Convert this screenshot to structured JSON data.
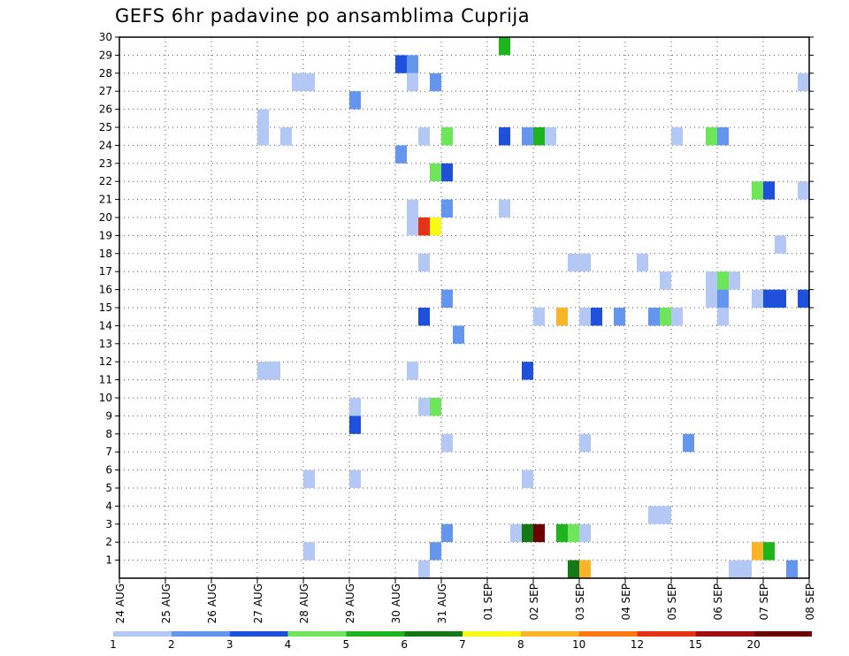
{
  "chart_data": {
    "type": "heatmap",
    "title": "GEFS 6hr padavine po ansamblima Cuprija",
    "x_ticks": [
      "24 AUG",
      "25 AUG",
      "26 AUG",
      "27 AUG",
      "28 AUG",
      "29 AUG",
      "30 AUG",
      "31 AUG",
      "01 SEP",
      "02 SEP",
      "03 SEP",
      "04 SEP",
      "05 SEP",
      "06 SEP",
      "07 SEP",
      "08 SEP"
    ],
    "y_ticks": [
      1,
      2,
      3,
      4,
      5,
      6,
      7,
      8,
      9,
      10,
      11,
      12,
      13,
      14,
      15,
      16,
      17,
      18,
      19,
      20,
      21,
      22,
      23,
      24,
      25,
      26,
      27,
      28,
      29,
      30
    ],
    "y_range": [
      0,
      30
    ],
    "x_range": [
      "24 AUG 00Z",
      "08 SEP 00Z"
    ],
    "x_step_hours": 6,
    "grid": true,
    "colorbar": {
      "labels": [
        "1",
        "2",
        "3",
        "4",
        "5",
        "6",
        "7",
        "8",
        "10",
        "12",
        "15",
        "20"
      ],
      "colors": [
        "#b4c8f5",
        "#6496f0",
        "#1e50dc",
        "#6ee65a",
        "#1eb41e",
        "#147814",
        "#fafa14",
        "#fab428",
        "#fa7814",
        "#e63214",
        "#a00f0f",
        "#6e0000"
      ]
    },
    "values": [
      {
        "t": 33,
        "m": 29,
        "v": 5.5
      },
      {
        "t": 24,
        "m": 28,
        "v": 3.5
      },
      {
        "t": 25,
        "m": 28,
        "v": 2.5
      },
      {
        "t": 15,
        "m": 27,
        "v": 1.5
      },
      {
        "t": 16,
        "m": 27,
        "v": 1.5
      },
      {
        "t": 25,
        "m": 27,
        "v": 1.5
      },
      {
        "t": 27,
        "m": 27,
        "v": 2.5
      },
      {
        "t": 59,
        "m": 27,
        "v": 1.5
      },
      {
        "t": 20,
        "m": 26,
        "v": 2.5
      },
      {
        "t": 12,
        "m": 25,
        "v": 1.5
      },
      {
        "t": 12,
        "m": 24,
        "v": 1.5
      },
      {
        "t": 14,
        "m": 24,
        "v": 1.5
      },
      {
        "t": 26,
        "m": 24,
        "v": 1.5
      },
      {
        "t": 28,
        "m": 24,
        "v": 4.5
      },
      {
        "t": 33,
        "m": 24,
        "v": 3.5
      },
      {
        "t": 35,
        "m": 24,
        "v": 2.5
      },
      {
        "t": 36,
        "m": 24,
        "v": 5.5
      },
      {
        "t": 37,
        "m": 24,
        "v": 1.5
      },
      {
        "t": 48,
        "m": 24,
        "v": 1.5
      },
      {
        "t": 51,
        "m": 24,
        "v": 4.5
      },
      {
        "t": 52,
        "m": 24,
        "v": 2.5
      },
      {
        "t": 24,
        "m": 23,
        "v": 2.5
      },
      {
        "t": 27,
        "m": 22,
        "v": 4.5
      },
      {
        "t": 28,
        "m": 22,
        "v": 3.5
      },
      {
        "t": 55,
        "m": 21,
        "v": 4.5
      },
      {
        "t": 56,
        "m": 21,
        "v": 3.5
      },
      {
        "t": 59,
        "m": 21,
        "v": 1.5
      },
      {
        "t": 25,
        "m": 20,
        "v": 1.5
      },
      {
        "t": 28,
        "m": 20,
        "v": 2.5
      },
      {
        "t": 33,
        "m": 20,
        "v": 1.5
      },
      {
        "t": 25,
        "m": 19,
        "v": 1.5
      },
      {
        "t": 26,
        "m": 19,
        "v": 13.5
      },
      {
        "t": 27,
        "m": 19,
        "v": 7.5
      },
      {
        "t": 57,
        "m": 18,
        "v": 1.5
      },
      {
        "t": 26,
        "m": 17,
        "v": 1.5
      },
      {
        "t": 39,
        "m": 17,
        "v": 1.5
      },
      {
        "t": 40,
        "m": 17,
        "v": 1.5
      },
      {
        "t": 45,
        "m": 17,
        "v": 1.5
      },
      {
        "t": 47,
        "m": 16,
        "v": 1.5
      },
      {
        "t": 51,
        "m": 16,
        "v": 1.5
      },
      {
        "t": 52,
        "m": 16,
        "v": 4.5
      },
      {
        "t": 53,
        "m": 16,
        "v": 1.5
      },
      {
        "t": 28,
        "m": 15,
        "v": 2.5
      },
      {
        "t": 51,
        "m": 15,
        "v": 1.5
      },
      {
        "t": 52,
        "m": 15,
        "v": 2.5
      },
      {
        "t": 55,
        "m": 15,
        "v": 1.5
      },
      {
        "t": 56,
        "m": 15,
        "v": 3.5
      },
      {
        "t": 57,
        "m": 15,
        "v": 3.5
      },
      {
        "t": 59,
        "m": 15,
        "v": 3.5
      },
      {
        "t": 26,
        "m": 14,
        "v": 3.5
      },
      {
        "t": 36,
        "m": 14,
        "v": 1.5
      },
      {
        "t": 38,
        "m": 14,
        "v": 9
      },
      {
        "t": 40,
        "m": 14,
        "v": 1.5
      },
      {
        "t": 41,
        "m": 14,
        "v": 3.5
      },
      {
        "t": 43,
        "m": 14,
        "v": 2.5
      },
      {
        "t": 46,
        "m": 14,
        "v": 2.5
      },
      {
        "t": 47,
        "m": 14,
        "v": 4.5
      },
      {
        "t": 48,
        "m": 14,
        "v": 1.5
      },
      {
        "t": 52,
        "m": 14,
        "v": 1.5
      },
      {
        "t": 29,
        "m": 13,
        "v": 2.5
      },
      {
        "t": 35,
        "m": 11,
        "v": 3.5
      },
      {
        "t": 12,
        "m": 11,
        "v": 1.5
      },
      {
        "t": 13,
        "m": 11,
        "v": 1.5
      },
      {
        "t": 25,
        "m": 11,
        "v": 1.5
      },
      {
        "t": 20,
        "m": 9,
        "v": 1.5
      },
      {
        "t": 26,
        "m": 9,
        "v": 1.5
      },
      {
        "t": 27,
        "m": 9,
        "v": 4.5
      },
      {
        "t": 20,
        "m": 8,
        "v": 3.5
      },
      {
        "t": 28,
        "m": 7,
        "v": 1.5
      },
      {
        "t": 40,
        "m": 7,
        "v": 1.5
      },
      {
        "t": 49,
        "m": 7,
        "v": 2.5
      },
      {
        "t": 16,
        "m": 5,
        "v": 1.5
      },
      {
        "t": 20,
        "m": 5,
        "v": 1.5
      },
      {
        "t": 35,
        "m": 5,
        "v": 1.5
      },
      {
        "t": 46,
        "m": 3,
        "v": 1.5
      },
      {
        "t": 47,
        "m": 3,
        "v": 1.5
      },
      {
        "t": 28,
        "m": 2,
        "v": 2.5
      },
      {
        "t": 34,
        "m": 2,
        "v": 1.5
      },
      {
        "t": 35,
        "m": 2,
        "v": 6.5
      },
      {
        "t": 36,
        "m": 2,
        "v": 25
      },
      {
        "t": 38,
        "m": 2,
        "v": 5.5
      },
      {
        "t": 39,
        "m": 2,
        "v": 4.5
      },
      {
        "t": 40,
        "m": 2,
        "v": 1.5
      },
      {
        "t": 16,
        "m": 1,
        "v": 1.5
      },
      {
        "t": 27,
        "m": 1,
        "v": 2.5
      },
      {
        "t": 55,
        "m": 1,
        "v": 9
      },
      {
        "t": 56,
        "m": 1,
        "v": 5.5
      },
      {
        "t": 26,
        "m": 0,
        "v": 1.5
      },
      {
        "t": 39,
        "m": 0,
        "v": 6.5
      },
      {
        "t": 40,
        "m": 0,
        "v": 9
      },
      {
        "t": 53,
        "m": 0,
        "v": 1.5
      },
      {
        "t": 54,
        "m": 0,
        "v": 1.5
      },
      {
        "t": 58,
        "m": 0,
        "v": 2.5
      }
    ]
  }
}
